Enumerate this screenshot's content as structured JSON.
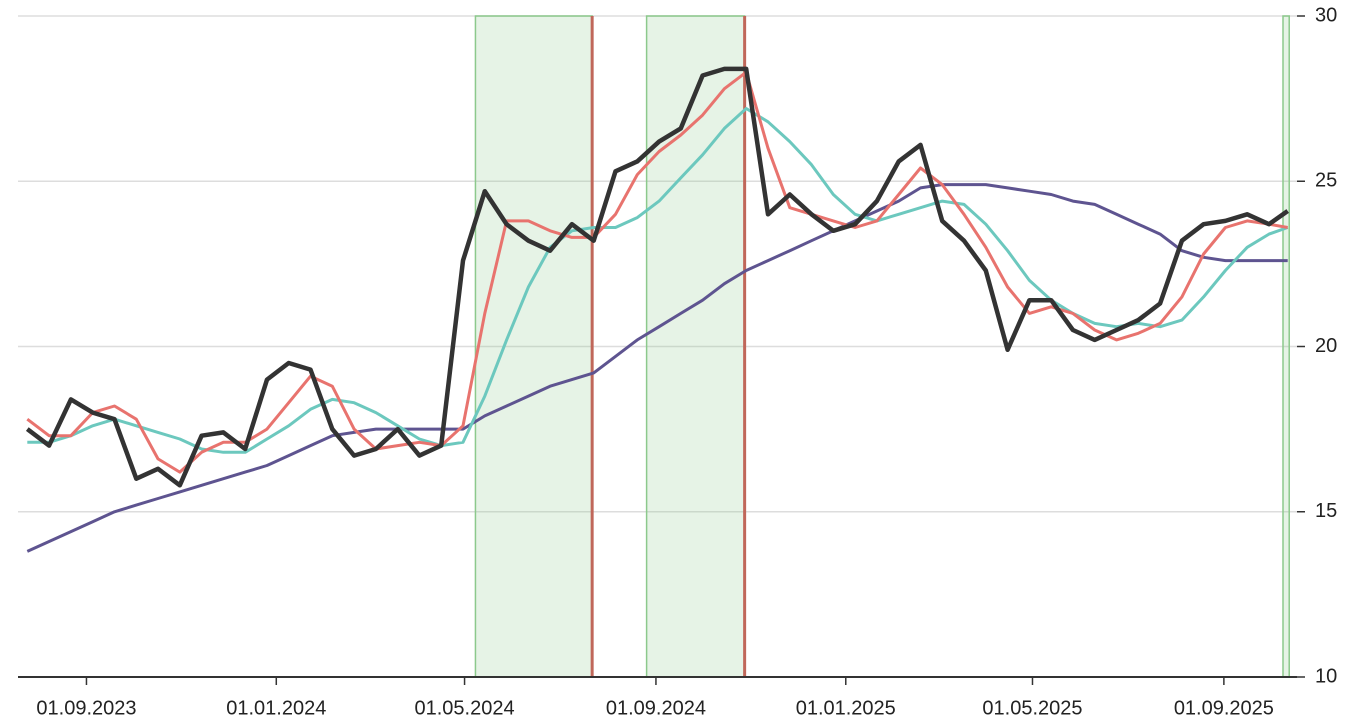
{
  "chart_data": {
    "type": "line",
    "x": [
      "2023-07-25",
      "2023-08-08",
      "2023-08-22",
      "2023-09-05",
      "2023-09-19",
      "2023-10-03",
      "2023-10-17",
      "2023-10-31",
      "2023-11-14",
      "2023-11-28",
      "2023-12-12",
      "2023-12-26",
      "2024-01-09",
      "2024-01-23",
      "2024-02-06",
      "2024-02-20",
      "2024-03-05",
      "2024-03-19",
      "2024-04-02",
      "2024-04-16",
      "2024-04-30",
      "2024-05-14",
      "2024-05-28",
      "2024-06-11",
      "2024-06-25",
      "2024-07-09",
      "2024-07-23",
      "2024-08-06",
      "2024-08-20",
      "2024-09-03",
      "2024-09-17",
      "2024-10-01",
      "2024-10-15",
      "2024-10-29",
      "2024-11-12",
      "2024-11-26",
      "2024-12-10",
      "2024-12-24",
      "2025-01-07",
      "2025-01-21",
      "2025-02-04",
      "2025-02-18",
      "2025-03-04",
      "2025-03-18",
      "2025-04-01",
      "2025-04-15",
      "2025-04-29",
      "2025-05-13",
      "2025-05-27",
      "2025-06-10",
      "2025-06-24",
      "2025-07-08",
      "2025-07-22",
      "2025-08-05",
      "2025-08-19",
      "2025-09-02",
      "2025-09-16",
      "2025-09-30",
      "2025-10-12"
    ],
    "series": [
      {
        "color": "#333333",
        "width": 4.5,
        "values": [
          17.5,
          17.0,
          18.4,
          18.0,
          17.8,
          16.0,
          16.3,
          15.8,
          17.3,
          17.4,
          16.9,
          19.0,
          19.5,
          19.3,
          17.5,
          16.7,
          16.9,
          17.5,
          16.7,
          17.0,
          22.6,
          24.7,
          23.7,
          23.2,
          22.9,
          23.7,
          23.2,
          25.3,
          25.6,
          26.2,
          26.6,
          28.2,
          28.4,
          28.4,
          24.0,
          24.6,
          24.0,
          23.5,
          23.7,
          24.4,
          25.6,
          26.1,
          23.8,
          23.2,
          22.3,
          19.9,
          21.4,
          21.4,
          20.5,
          20.2,
          20.5,
          20.8,
          21.3,
          23.2,
          23.7,
          23.8,
          24.0,
          23.7,
          24.1
        ]
      },
      {
        "color": "#e8736e",
        "width": 3,
        "values": [
          17.8,
          17.3,
          17.3,
          18.0,
          18.2,
          17.8,
          16.6,
          16.2,
          16.8,
          17.1,
          17.1,
          17.5,
          18.3,
          19.1,
          18.8,
          17.5,
          16.9,
          17.0,
          17.1,
          17.0,
          17.6,
          21.0,
          23.8,
          23.8,
          23.5,
          23.3,
          23.3,
          24.0,
          25.2,
          25.9,
          26.4,
          27.0,
          27.8,
          28.3,
          26.0,
          24.2,
          24.0,
          23.8,
          23.6,
          23.8,
          24.6,
          25.4,
          24.9,
          24.0,
          23.0,
          21.8,
          21.0,
          21.2,
          21.0,
          20.5,
          20.2,
          20.4,
          20.7,
          21.5,
          22.8,
          23.6,
          23.8,
          23.7,
          23.6
        ]
      },
      {
        "color": "#6cc8be",
        "width": 3,
        "values": [
          17.1,
          17.1,
          17.3,
          17.6,
          17.8,
          17.6,
          17.4,
          17.2,
          16.9,
          16.8,
          16.8,
          17.2,
          17.6,
          18.1,
          18.4,
          18.3,
          18.0,
          17.6,
          17.2,
          17.0,
          17.1,
          18.5,
          20.2,
          21.8,
          23.0,
          23.5,
          23.6,
          23.6,
          23.9,
          24.4,
          25.1,
          25.8,
          26.6,
          27.2,
          26.8,
          26.2,
          25.5,
          24.6,
          24.0,
          23.8,
          24.0,
          24.2,
          24.4,
          24.3,
          23.7,
          22.9,
          22.0,
          21.4,
          21.0,
          20.7,
          20.6,
          20.7,
          20.6,
          20.8,
          21.5,
          22.3,
          23.0,
          23.4,
          23.6
        ]
      },
      {
        "color": "#5e5490",
        "width": 3,
        "values": [
          13.8,
          14.1,
          14.4,
          14.7,
          15.0,
          15.2,
          15.4,
          15.6,
          15.8,
          16.0,
          16.2,
          16.4,
          16.7,
          17.0,
          17.3,
          17.4,
          17.5,
          17.5,
          17.5,
          17.5,
          17.5,
          17.9,
          18.2,
          18.5,
          18.8,
          19.0,
          19.2,
          19.7,
          20.2,
          20.6,
          21.0,
          21.4,
          21.9,
          22.3,
          22.6,
          22.9,
          23.2,
          23.5,
          23.8,
          24.1,
          24.4,
          24.8,
          24.9,
          24.9,
          24.9,
          24.8,
          24.7,
          24.6,
          24.4,
          24.3,
          24.0,
          23.7,
          23.4,
          22.9,
          22.7,
          22.6,
          22.6,
          22.6,
          22.6
        ]
      }
    ],
    "periods": [
      {
        "start": "2024-05-08",
        "end": "2024-07-22"
      },
      {
        "start": "2024-08-26",
        "end": "2024-10-28"
      },
      {
        "start": "2025-10-09",
        "end": "2025-10-13"
      }
    ],
    "period_color": "#8cc98c",
    "signals": [
      "2024-07-22",
      "2024-10-28"
    ],
    "signal_color": "#c0675a",
    "xlim": [
      "2023-07-19",
      "2025-10-18"
    ],
    "xticks": [
      {
        "value": "2023-09-01",
        "label": "01.09.2023"
      },
      {
        "value": "2024-01-01",
        "label": "01.01.2024"
      },
      {
        "value": "2024-05-01",
        "label": "01.05.2024"
      },
      {
        "value": "2024-09-01",
        "label": "01.09.2024"
      },
      {
        "value": "2025-01-01",
        "label": "01.01.2025"
      },
      {
        "value": "2025-05-01",
        "label": "01.05.2025"
      },
      {
        "value": "2025-09-01",
        "label": "01.09.2025"
      }
    ],
    "ylim": [
      10,
      30
    ],
    "yticks": [
      10,
      15,
      20,
      25,
      30
    ],
    "grid": true
  }
}
